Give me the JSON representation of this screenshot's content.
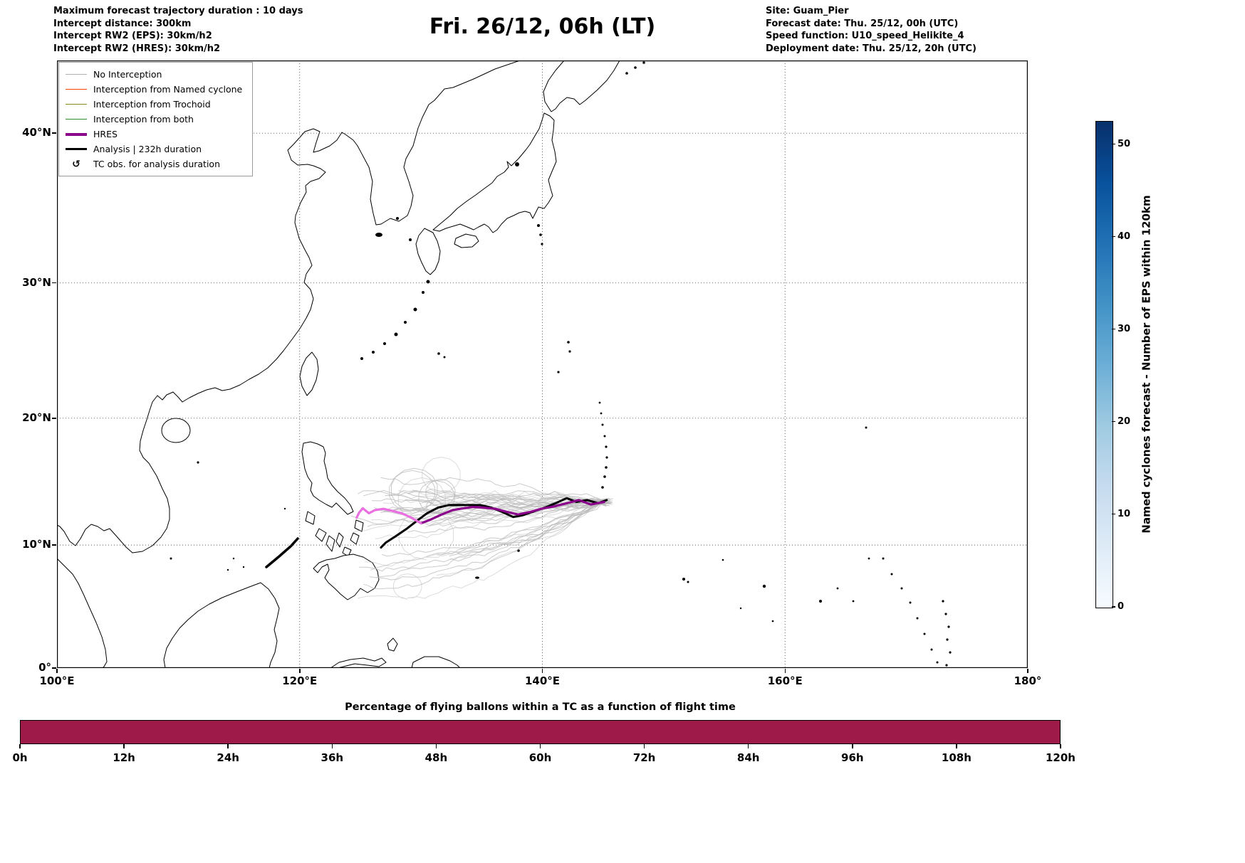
{
  "header": {
    "left_lines": [
      "Maximum forecast trajectory duration : 10 days",
      "Intercept distance: 300km",
      "Intercept RW2 (EPS):  30km/h2",
      "Intercept RW2 (HRES): 30km/h2"
    ],
    "title": "Fri. 26/12, 06h (LT)",
    "right_lines": [
      "Site: Guam_Pier",
      "Forecast date: Thu. 25/12, 00h (UTC)",
      "Speed function: U10_speed_Helikite_4",
      "Deployment date: Thu. 25/12, 20h (UTC)"
    ]
  },
  "legend": {
    "items": [
      {
        "label": "No Interception",
        "swatch": "line",
        "color": "#b0b0b0",
        "width": 1.5
      },
      {
        "label": "Interception from Named cyclone",
        "swatch": "line",
        "color": "#ff4500",
        "width": 1.5
      },
      {
        "label": "Interception from Trochoid",
        "swatch": "line",
        "color": "#8a8b1f",
        "width": 1.5
      },
      {
        "label": "Interception from both",
        "swatch": "line",
        "color": "#2e8b2e",
        "width": 1.5
      },
      {
        "label": "HRES",
        "swatch": "line",
        "color": "#8b008b",
        "width": 4
      },
      {
        "label": "Analysis | 232h duration",
        "swatch": "line",
        "color": "#000000",
        "width": 3.5
      },
      {
        "label": "TC obs. for analysis duration",
        "swatch": "symbol",
        "symbol": "↺"
      }
    ]
  },
  "chart_data": [
    {
      "type": "line",
      "subtype": "trajectory_map",
      "title": "Fri. 26/12, 06h (LT)",
      "projection": "mercator",
      "extent": {
        "lon": [
          100,
          180
        ],
        "lat": [
          0,
          44.4
        ]
      },
      "grid": "dotted",
      "x_axis": {
        "ticks": [
          "100°E",
          "120°E",
          "140°E",
          "160°E",
          "180°"
        ],
        "lon_values": [
          100,
          120,
          140,
          160,
          180
        ]
      },
      "y_axis": {
        "ticks": [
          "0°",
          "10°N",
          "20°N",
          "30°N",
          "40°N"
        ],
        "lat_values": [
          0,
          10,
          20,
          30,
          40
        ]
      },
      "launch_site": {
        "name": "Guam_Pier",
        "lon": 144.8,
        "lat": 13.45
      },
      "colorbar": {
        "label": "Named cyclones forecast - Number of EPS within 120km",
        "ticks": [
          0,
          10,
          20,
          30,
          40,
          50
        ],
        "range": [
          0,
          52.5
        ],
        "colormap": "Blues",
        "stops": [
          "#f7fbff",
          "#deebf7",
          "#c6dbef",
          "#9ecae1",
          "#6baed6",
          "#4292c6",
          "#2171b5",
          "#08519c",
          "#08306b"
        ]
      },
      "series": [
        {
          "role": "ensemble",
          "name": "EPS balloon trajectories (No Interception)",
          "color": "#b9b9b9",
          "count": 46,
          "seed": 13,
          "start": [
            144.8,
            13.45
          ],
          "end_lon_range": [
            124.5,
            133.5
          ],
          "end_lat_range": [
            5,
            15
          ],
          "loop_fraction": 0.22
        },
        {
          "role": "track",
          "name": "Analysis | 232h duration",
          "color": "#000000",
          "width": 3,
          "points": [
            [
              145.3,
              13.6
            ],
            [
              144.6,
              13.35
            ],
            [
              143.7,
              13.6
            ],
            [
              142.8,
              13.45
            ],
            [
              142.0,
              13.75
            ],
            [
              141.1,
              13.35
            ],
            [
              140.2,
              13.0
            ],
            [
              139.3,
              12.7
            ],
            [
              138.4,
              12.4
            ],
            [
              137.6,
              12.25
            ],
            [
              136.7,
              12.65
            ],
            [
              135.8,
              13.0
            ],
            [
              134.9,
              13.2
            ],
            [
              134.0,
              13.2
            ],
            [
              133.2,
              13.2
            ],
            [
              132.3,
              13.2
            ],
            [
              131.4,
              13.0
            ],
            [
              130.5,
              12.55
            ],
            [
              129.6,
              11.9
            ],
            [
              128.8,
              11.3
            ],
            [
              127.9,
              10.7
            ],
            [
              127.1,
              10.2
            ],
            [
              126.7,
              9.8
            ]
          ]
        },
        {
          "role": "track",
          "name": "HRES",
          "color": "#8b008b",
          "width": 3.2,
          "points": [
            [
              145.1,
              13.45
            ],
            [
              144.0,
              13.25
            ],
            [
              143.0,
              13.6
            ],
            [
              142.0,
              13.35
            ],
            [
              141.0,
              13.1
            ],
            [
              139.9,
              12.9
            ],
            [
              139.0,
              12.65
            ],
            [
              138.0,
              12.45
            ],
            [
              137.1,
              12.65
            ],
            [
              136.1,
              12.9
            ],
            [
              135.2,
              13.0
            ],
            [
              134.3,
              13.05
            ],
            [
              133.5,
              12.95
            ],
            [
              132.6,
              12.8
            ],
            [
              131.7,
              12.45
            ],
            [
              130.8,
              12.05
            ],
            [
              130.0,
              11.75
            ]
          ]
        },
        {
          "role": "track",
          "name": "HRES (light magenta segment)",
          "color": "#ea6fe0",
          "width": 3.2,
          "points": [
            [
              130.0,
              11.75
            ],
            [
              129.2,
              12.2
            ],
            [
              128.4,
              12.55
            ],
            [
              127.6,
              12.75
            ],
            [
              126.9,
              12.9
            ],
            [
              126.2,
              12.8
            ],
            [
              125.7,
              12.55
            ],
            [
              125.2,
              12.95
            ],
            [
              124.9,
              12.6
            ],
            [
              124.7,
              12.2
            ]
          ]
        }
      ]
    },
    {
      "type": "bar",
      "title": "Percentage of flying ballons within a TC as a function of flight time",
      "x_ticks": [
        "0h",
        "12h",
        "24h",
        "36h",
        "48h",
        "60h",
        "72h",
        "84h",
        "96h",
        "108h",
        "120h"
      ],
      "x_range_hours": [
        0,
        120
      ],
      "bar_color": "#9e1a48",
      "bar": {
        "start_hour": 0,
        "end_hour": 120,
        "solid": true
      }
    }
  ]
}
